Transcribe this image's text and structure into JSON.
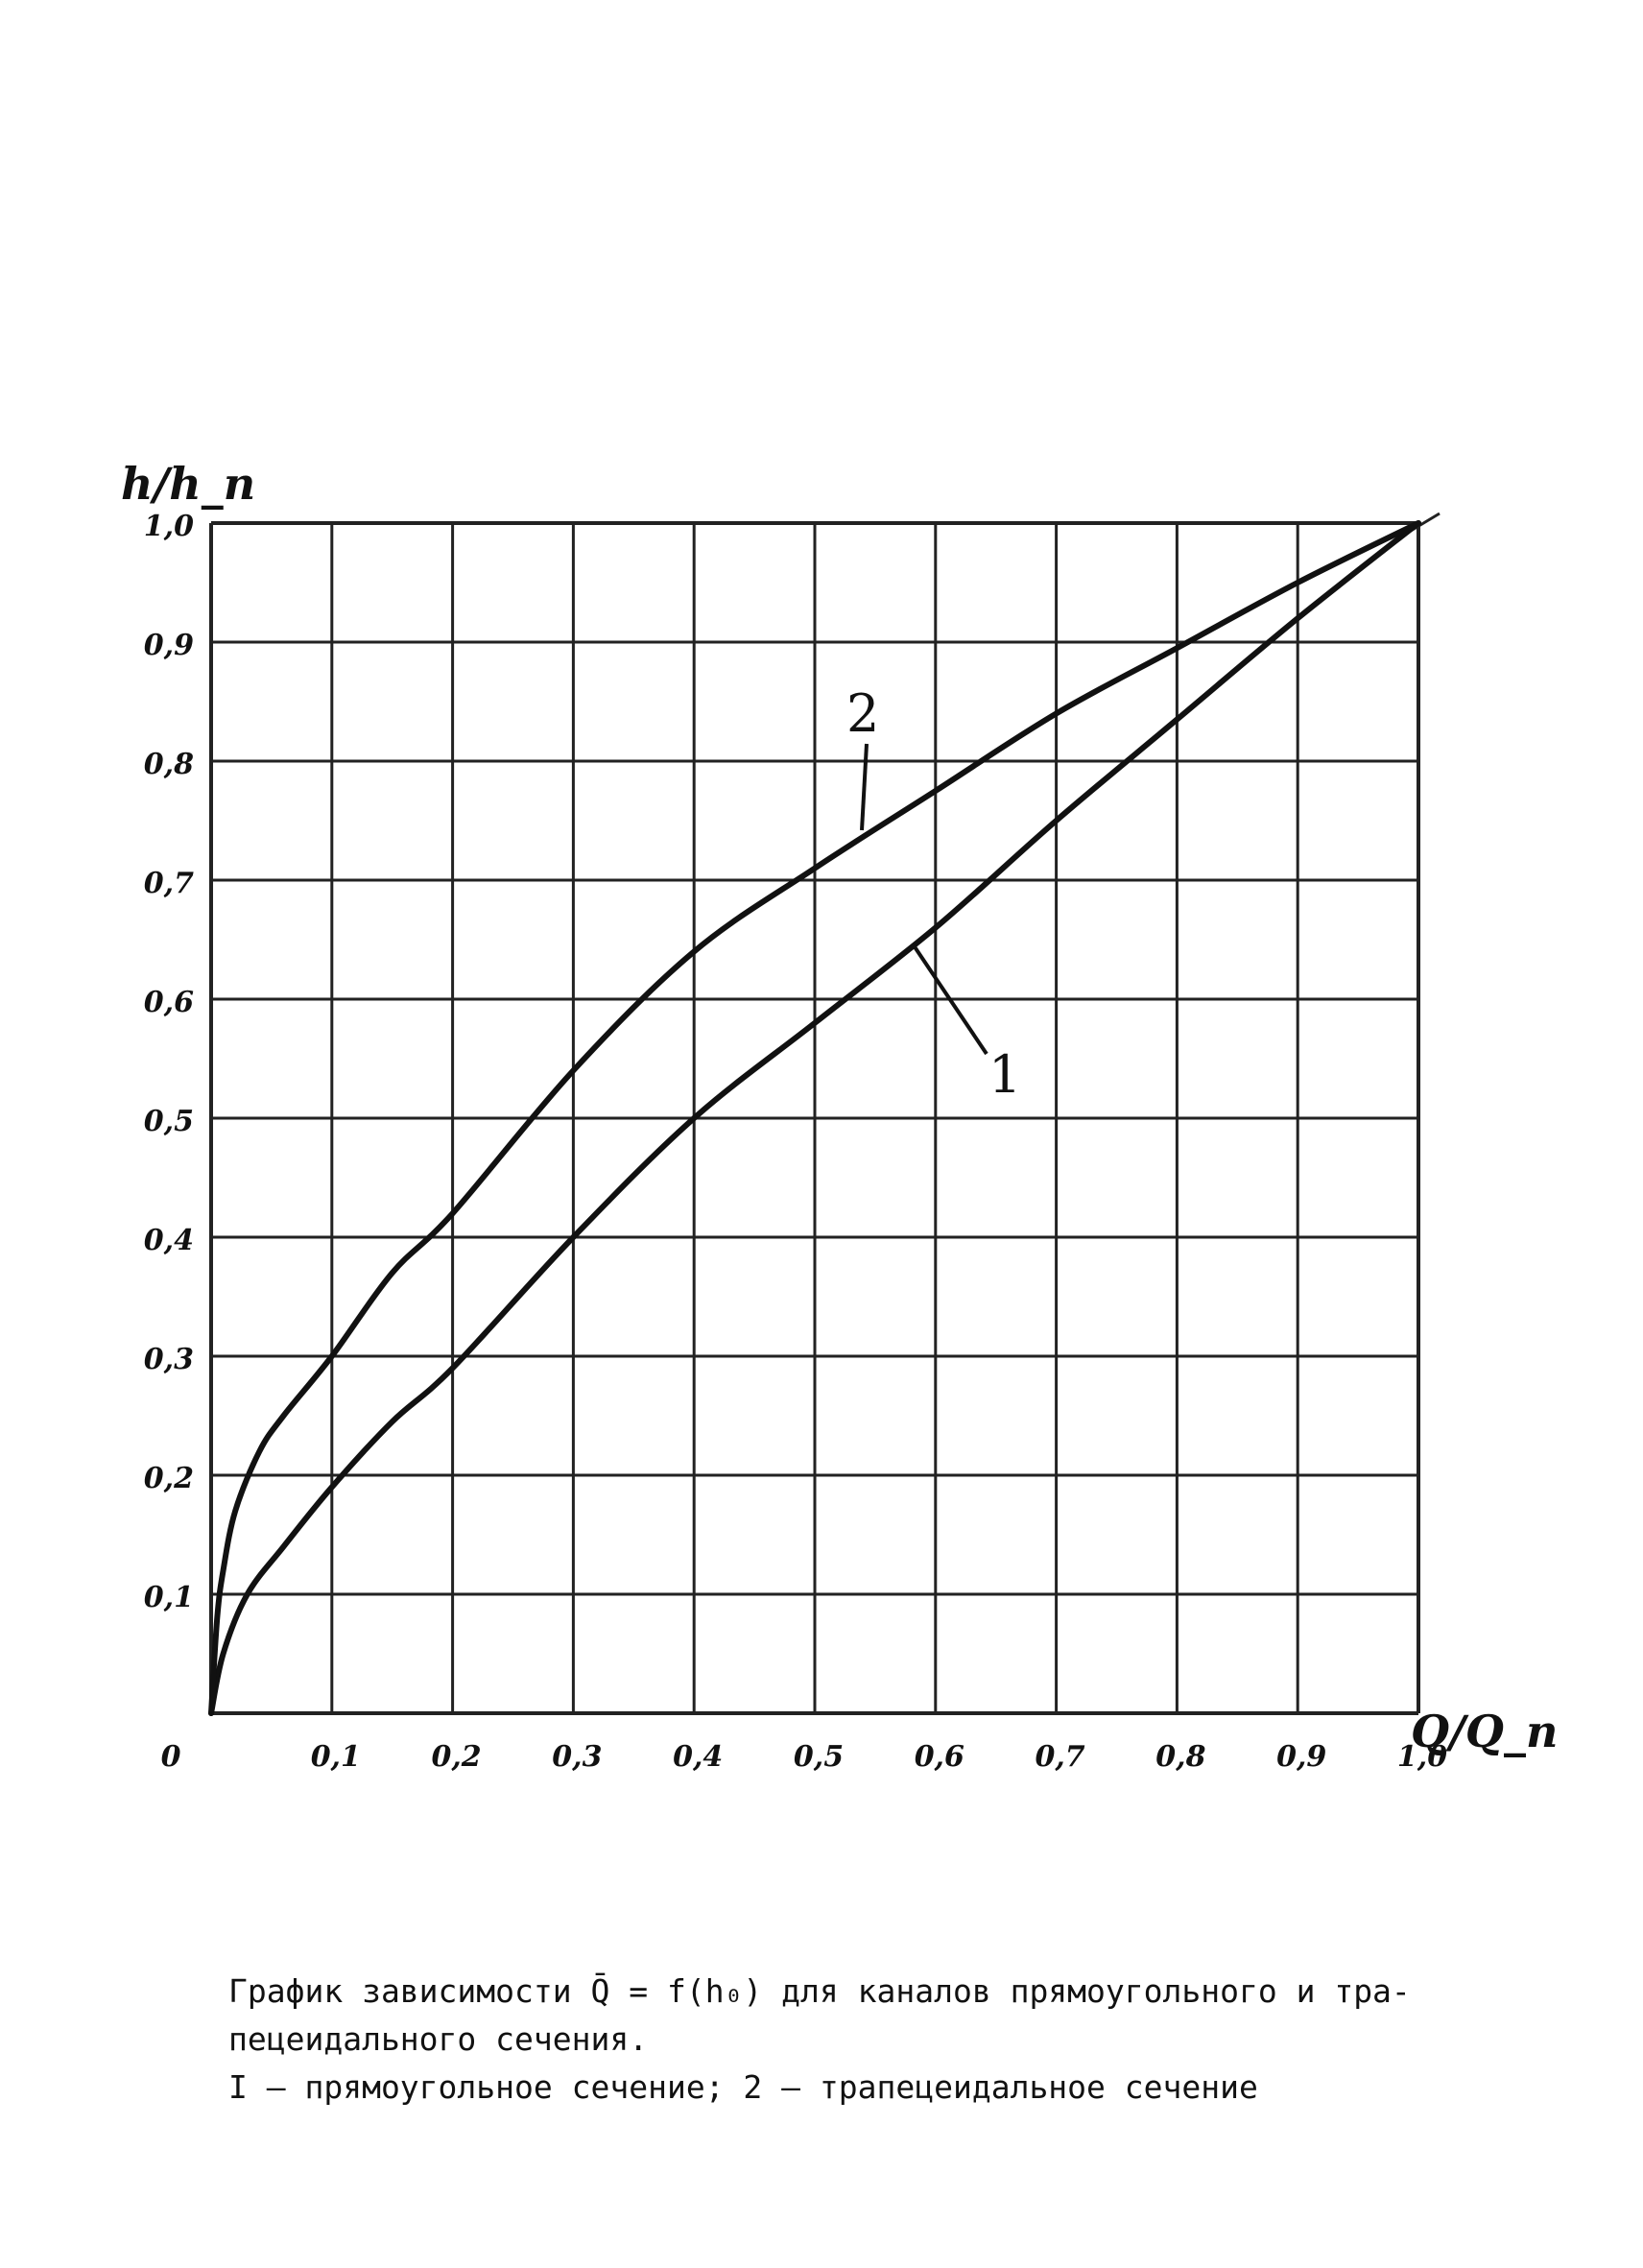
{
  "chart_data": {
    "type": "line",
    "xlabel": "Q/Q_n",
    "ylabel": "h/h_n",
    "xlim": [
      0,
      1.0
    ],
    "ylim": [
      0,
      1.0
    ],
    "grid": true,
    "x_ticks": [
      "0",
      "0,1",
      "0,2",
      "0,3",
      "0,4",
      "0,5",
      "0,6",
      "0,7",
      "0,8",
      "0,9",
      "1,0"
    ],
    "y_ticks": [
      "0,1",
      "0,2",
      "0,3",
      "0,4",
      "0,5",
      "0,6",
      "0,7",
      "0,8",
      "0,9",
      "1,0"
    ],
    "series": [
      {
        "name": "1",
        "x": [
          0,
          0.01,
          0.03,
          0.06,
          0.1,
          0.15,
          0.2,
          0.3,
          0.4,
          0.5,
          0.6,
          0.7,
          0.8,
          0.9,
          1.0
        ],
        "y": [
          0,
          0.05,
          0.1,
          0.14,
          0.19,
          0.245,
          0.29,
          0.4,
          0.5,
          0.58,
          0.66,
          0.75,
          0.835,
          0.92,
          1.0
        ]
      },
      {
        "name": "2",
        "x": [
          0,
          0.005,
          0.01,
          0.02,
          0.04,
          0.06,
          0.1,
          0.15,
          0.2,
          0.3,
          0.4,
          0.5,
          0.6,
          0.7,
          0.8,
          0.9,
          1.0
        ],
        "y": [
          0,
          0.08,
          0.12,
          0.17,
          0.22,
          0.25,
          0.3,
          0.37,
          0.42,
          0.54,
          0.64,
          0.71,
          0.775,
          0.84,
          0.895,
          0.95,
          1.0
        ]
      }
    ],
    "curve_labels": [
      "1",
      "2"
    ]
  },
  "caption": {
    "line1": "График зависимости Q̄ = f(h₀) для каналов прямоугольного и тра-",
    "line2": "пецеидального сечения.",
    "line3": "I – прямоугольное сечение; 2 – трапецеидальное сечение"
  }
}
